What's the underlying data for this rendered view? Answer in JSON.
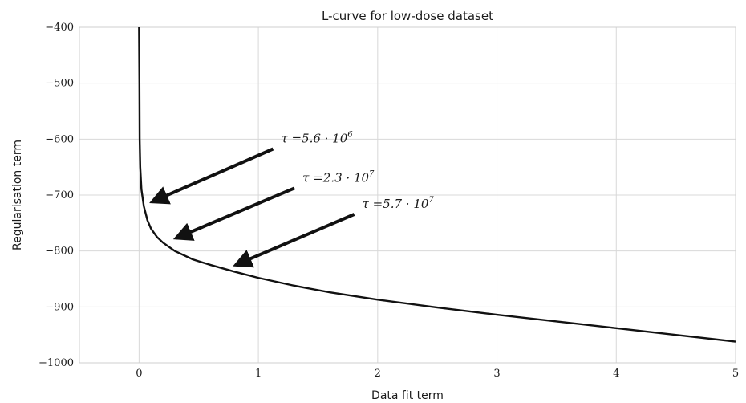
{
  "chart_data": {
    "type": "line",
    "title": "L-curve for low-dose dataset",
    "xlabel": "Data fit term",
    "ylabel": "Regularisation term",
    "xlim": [
      -0.5,
      5
    ],
    "ylim": [
      -1000,
      -400
    ],
    "x_ticks": [
      0,
      1,
      2,
      3,
      4,
      5
    ],
    "x_tick_labels": [
      "0",
      "1",
      "2",
      "3",
      "4",
      "5"
    ],
    "y_ticks": [
      -400,
      -500,
      -600,
      -700,
      -800,
      -900,
      -1000
    ],
    "y_tick_labels": [
      "−400",
      "−500",
      "−600",
      "−700",
      "−800",
      "−900",
      "−1000"
    ],
    "grid": true,
    "series": [
      {
        "x": [
          0.0,
          0.003,
          0.005,
          0.01,
          0.02,
          0.04,
          0.07,
          0.1,
          0.15,
          0.2,
          0.3,
          0.45,
          0.6,
          0.8,
          1.0,
          1.3,
          1.6,
          2.0,
          2.5,
          3.0,
          3.5,
          4.0,
          4.5,
          5.0
        ],
        "y": [
          -400,
          -500,
          -600,
          -650,
          -690,
          -720,
          -745,
          -760,
          -775,
          -785,
          -800,
          -815,
          -825,
          -837,
          -848,
          -862,
          -874,
          -887,
          -901,
          -914,
          -926,
          -938,
          -950,
          -962
        ]
      }
    ],
    "annotations": [
      {
        "text_base": "τ =5.6 · 10",
        "exponent": "6",
        "point": [
          0.07,
          -717
        ],
        "text_at": [
          1.15,
          -606
        ]
      },
      {
        "text_base": "τ =2.3 · 10",
        "exponent": "7",
        "point": [
          0.27,
          -782
        ],
        "text_at": [
          1.33,
          -676
        ]
      },
      {
        "text_base": "τ =5.7 · 10",
        "exponent": "7",
        "point": [
          0.77,
          -830
        ],
        "text_at": [
          1.83,
          -723
        ]
      }
    ]
  }
}
